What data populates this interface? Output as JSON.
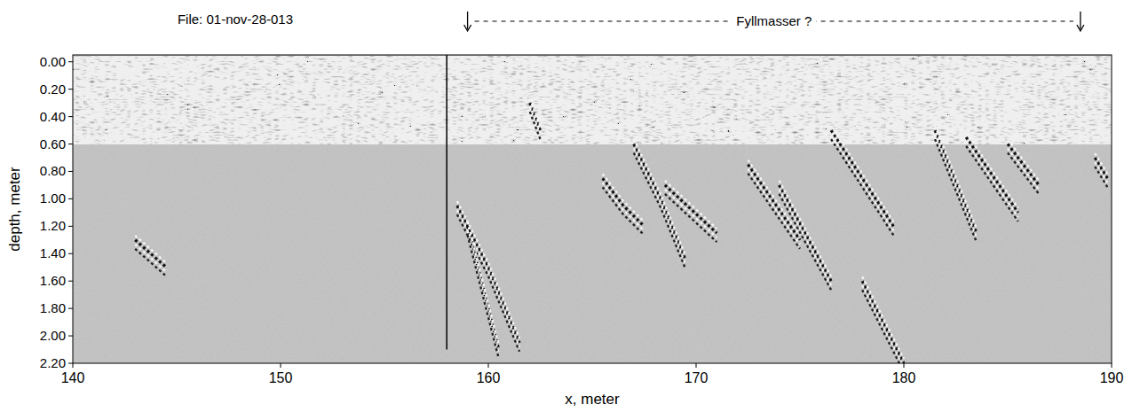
{
  "chart_data": {
    "type": "radargram",
    "title": "File: 01-nov-28-013",
    "x_label": "x, meter",
    "y_label": "depth, meter",
    "xlim": [
      140,
      190
    ],
    "ylim": [
      -0.05,
      2.2
    ],
    "xticks": [
      140,
      150,
      160,
      170,
      180,
      190
    ],
    "yticks": [
      {
        "value": 0,
        "label": "0.00"
      },
      {
        "value": 0.2,
        "label": "0.20"
      },
      {
        "value": 0.4,
        "label": "0.40"
      },
      {
        "value": 0.6,
        "label": "0.60"
      },
      {
        "value": 0.8,
        "label": "0.80"
      },
      {
        "value": 1.0,
        "label": "1.00"
      },
      {
        "value": 1.2,
        "label": "1.20"
      },
      {
        "value": 1.4,
        "label": "1.40"
      },
      {
        "value": 1.6,
        "label": "1.60"
      },
      {
        "value": 1.8,
        "label": "1.80"
      },
      {
        "value": 2.0,
        "label": "2.00"
      },
      {
        "value": 2.2,
        "label": "2.20"
      }
    ],
    "surface_layer": [
      0,
      0.6
    ],
    "vline": {
      "x": 158,
      "y": [
        -0.05,
        2.1
      ]
    },
    "annotation": {
      "text": "Fyllmasser ?",
      "x": [
        159,
        188.5
      ]
    },
    "reflectors": [
      {
        "x": [
          143,
          144.5
        ],
        "y": [
          1.3,
          1.5
        ]
      },
      {
        "x": [
          158.5,
          160,
          161.5
        ],
        "y": [
          1.05,
          1.5,
          2.05
        ]
      },
      {
        "x": [
          159,
          160.5
        ],
        "y": [
          1.2,
          2.1
        ]
      },
      {
        "x": [
          162,
          162.5
        ],
        "y": [
          0.3,
          0.5
        ]
      },
      {
        "x": [
          165.5,
          166.5,
          167.5
        ],
        "y": [
          0.85,
          1.05,
          1.2
        ]
      },
      {
        "x": [
          167,
          168.3,
          169.5
        ],
        "y": [
          0.6,
          1.0,
          1.45
        ]
      },
      {
        "x": [
          168.5,
          171
        ],
        "y": [
          0.9,
          1.25
        ]
      },
      {
        "x": [
          172.5,
          175
        ],
        "y": [
          0.75,
          1.3
        ]
      },
      {
        "x": [
          174,
          176.5
        ],
        "y": [
          0.9,
          1.6
        ]
      },
      {
        "x": [
          176.5,
          179.5
        ],
        "y": [
          0.5,
          1.2
        ]
      },
      {
        "x": [
          178,
          180
        ],
        "y": [
          1.6,
          2.2
        ]
      },
      {
        "x": [
          181.5,
          183.5
        ],
        "y": [
          0.5,
          1.25
        ]
      },
      {
        "x": [
          183,
          185.5
        ],
        "y": [
          0.55,
          1.1
        ]
      },
      {
        "x": [
          185,
          186.5
        ],
        "y": [
          0.6,
          0.9
        ]
      },
      {
        "x": [
          189.2,
          189.8
        ],
        "y": [
          0.7,
          0.85
        ]
      }
    ]
  }
}
